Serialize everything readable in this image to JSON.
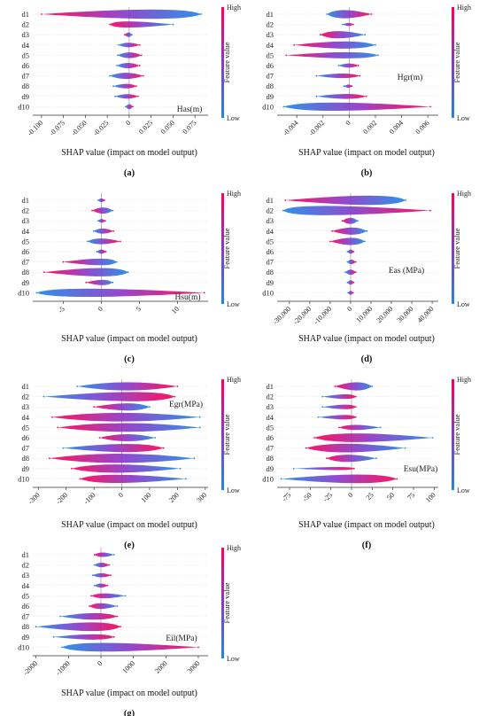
{
  "colorbar": {
    "high_label": "High",
    "low_label": "Low",
    "title": "Feature value",
    "color_low": "#1e88e5",
    "color_mid": "#8a39c8",
    "color_high": "#ff0052"
  },
  "xlabel": "SHAP value (impact on model output)",
  "chart_data": [
    {
      "panel": "(a)",
      "type": "violin",
      "feature_label": "Has(m)",
      "features": [
        "d1",
        "d2",
        "d3",
        "d4",
        "d5",
        "d6",
        "d7",
        "d8",
        "d9",
        "d10"
      ],
      "xlim": [
        -0.11,
        0.09
      ],
      "xticks": [
        -0.1,
        -0.075,
        -0.05,
        -0.025,
        0,
        0.025,
        0.05,
        0.075
      ],
      "xtick_labels": [
        "-0.100",
        "-0.075",
        "-0.050",
        "-0.025",
        "0",
        "0.025",
        "0.050",
        "0.075"
      ],
      "series": [
        {
          "range": [
            -0.1,
            0.082
          ],
          "width": 0.45,
          "peak": 0.06,
          "low_side": "right"
        },
        {
          "range": [
            -0.022,
            0.05
          ],
          "width": 0.3,
          "peak": -0.015,
          "low_side": "right"
        },
        {
          "range": [
            -0.005,
            0.003
          ],
          "width": 0.22,
          "peak": 0,
          "low_side": "right"
        },
        {
          "range": [
            -0.012,
            0.012
          ],
          "width": 0.22,
          "peak": -0.002,
          "low_side": "left"
        },
        {
          "range": [
            -0.013,
            0.014
          ],
          "width": 0.28,
          "peak": 0,
          "low_side": "left"
        },
        {
          "range": [
            -0.014,
            0.012
          ],
          "width": 0.26,
          "peak": -0.002,
          "low_side": "left"
        },
        {
          "range": [
            -0.022,
            0.016
          ],
          "width": 0.3,
          "peak": -0.004,
          "low_side": "left"
        },
        {
          "range": [
            -0.018,
            0.008
          ],
          "width": 0.22,
          "peak": -0.001,
          "low_side": "left"
        },
        {
          "range": [
            -0.016,
            0.01
          ],
          "width": 0.22,
          "peak": -0.001,
          "low_side": "left"
        },
        {
          "range": [
            -0.004,
            0.004
          ],
          "width": 0.24,
          "peak": 0,
          "low_side": "left"
        }
      ]
    },
    {
      "panel": "(b)",
      "type": "violin",
      "feature_label": "Hgr(m)",
      "features": [
        "d1",
        "d2",
        "d3",
        "d4",
        "d5",
        "d6",
        "d7",
        "d8",
        "d9",
        "d10"
      ],
      "xlim": [
        -0.0055,
        0.0068
      ],
      "xticks": [
        -0.004,
        -0.002,
        0,
        0.002,
        0.004,
        0.006
      ],
      "xtick_labels": [
        "-0.004",
        "-0.002",
        "0",
        "0.002",
        "0.004",
        "0.006"
      ],
      "series": [
        {
          "range": [
            -0.0017,
            0.0017
          ],
          "width": 0.4,
          "peak": -0.0008,
          "low_side": "left"
        },
        {
          "range": [
            -0.0005,
            0.0003
          ],
          "width": 0.15,
          "peak": 0,
          "low_side": "left"
        },
        {
          "range": [
            -0.0022,
            0.0012
          ],
          "width": 0.35,
          "peak": -0.0012,
          "low_side": "right"
        },
        {
          "range": [
            -0.0042,
            0.002
          ],
          "width": 0.35,
          "peak": 0.0005,
          "low_side": "right"
        },
        {
          "range": [
            -0.0048,
            0.0022
          ],
          "width": 0.3,
          "peak": 0.001,
          "low_side": "right"
        },
        {
          "range": [
            -0.0008,
            0.0007
          ],
          "width": 0.2,
          "peak": 0,
          "low_side": "left"
        },
        {
          "range": [
            -0.0025,
            0.0008
          ],
          "width": 0.22,
          "peak": -0.0002,
          "low_side": "left"
        },
        {
          "range": [
            -0.0004,
            0.0002
          ],
          "width": 0.16,
          "peak": 0,
          "low_side": "left"
        },
        {
          "range": [
            -0.0025,
            0.0013
          ],
          "width": 0.24,
          "peak": 0.0002,
          "low_side": "left"
        },
        {
          "range": [
            -0.005,
            0.0062
          ],
          "width": 0.4,
          "peak": -0.003,
          "low_side": "left"
        }
      ]
    },
    {
      "panel": "(c)",
      "type": "violin",
      "feature_label": "Hsu(m)",
      "features": [
        "d1",
        "d2",
        "d3",
        "d4",
        "d5",
        "d6",
        "d7",
        "d8",
        "d9",
        "d10"
      ],
      "xlim": [
        -9,
        14
      ],
      "xticks": [
        -5,
        0,
        5,
        10
      ],
      "xtick_labels": [
        "-5",
        "0",
        "5",
        "10"
      ],
      "series": [
        {
          "range": [
            -0.4,
            0.4
          ],
          "width": 0.18,
          "peak": 0,
          "low_side": "left"
        },
        {
          "range": [
            -1.2,
            1.5
          ],
          "width": 0.3,
          "peak": 0.3,
          "low_side": "right"
        },
        {
          "range": [
            -0.4,
            0.5
          ],
          "width": 0.18,
          "peak": 0,
          "low_side": "left"
        },
        {
          "range": [
            -1,
            1.6
          ],
          "width": 0.25,
          "peak": 0,
          "low_side": "left"
        },
        {
          "range": [
            -1.8,
            2.5
          ],
          "width": 0.28,
          "peak": -0.5,
          "low_side": "left"
        },
        {
          "range": [
            -0.6,
            0.6
          ],
          "width": 0.2,
          "peak": 0,
          "low_side": "left"
        },
        {
          "range": [
            -5,
            2
          ],
          "width": 0.32,
          "peak": 1.2,
          "low_side": "right"
        },
        {
          "range": [
            -7.5,
            3.5
          ],
          "width": 0.4,
          "peak": 2,
          "low_side": "right"
        },
        {
          "range": [
            -2,
            1.5
          ],
          "width": 0.26,
          "peak": 0.5,
          "low_side": "right"
        },
        {
          "range": [
            -8.5,
            13.5
          ],
          "width": 0.4,
          "peak": -6,
          "low_side": "left"
        }
      ]
    },
    {
      "panel": "(d)",
      "type": "violin",
      "feature_label": "Eas (MPa)",
      "features": [
        "d1",
        "d2",
        "d3",
        "d4",
        "d5",
        "d6",
        "d7",
        "d8",
        "d9",
        "d10"
      ],
      "xlim": [
        -36000,
        43000
      ],
      "xticks": [
        -30000,
        -20000,
        -10000,
        0,
        10000,
        20000,
        30000,
        40000
      ],
      "xtick_labels": [
        "-30,000",
        "-20,000",
        "-10,000",
        "0",
        "10,000",
        "20,000",
        "30,000",
        "40,000"
      ],
      "series": [
        {
          "range": [
            -32000,
            27000
          ],
          "width": 0.45,
          "peak": 20000,
          "low_side": "right"
        },
        {
          "range": [
            -33000,
            39000
          ],
          "width": 0.45,
          "peak": -28000,
          "low_side": "left"
        },
        {
          "range": [
            -4000,
            3500
          ],
          "width": 0.3,
          "peak": 0,
          "low_side": "right"
        },
        {
          "range": [
            -9000,
            8000
          ],
          "width": 0.35,
          "peak": 2000,
          "low_side": "right"
        },
        {
          "range": [
            -10000,
            7000
          ],
          "width": 0.35,
          "peak": 2000,
          "low_side": "right"
        },
        {
          "range": [
            -1500,
            1500
          ],
          "width": 0.2,
          "peak": 0,
          "low_side": "left"
        },
        {
          "range": [
            -1500,
            2500
          ],
          "width": 0.22,
          "peak": 0,
          "low_side": "left"
        },
        {
          "range": [
            -2500,
            2500
          ],
          "width": 0.25,
          "peak": 0,
          "low_side": "left"
        },
        {
          "range": [
            -1500,
            1500
          ],
          "width": 0.22,
          "peak": 0,
          "low_side": "left"
        },
        {
          "range": [
            -1200,
            1200
          ],
          "width": 0.2,
          "peak": 0,
          "low_side": "left"
        }
      ]
    },
    {
      "panel": "(e)",
      "type": "violin",
      "feature_label": "Egr(MPa)",
      "features": [
        "d1",
        "d2",
        "d3",
        "d4",
        "d5",
        "d6",
        "d7",
        "d8",
        "d9",
        "d10"
      ],
      "xlim": [
        -320,
        310
      ],
      "xticks": [
        -300,
        -200,
        -100,
        0,
        100,
        200,
        300
      ],
      "xtick_labels": [
        "-300",
        "-200",
        "-100",
        "0",
        "100",
        "200",
        "300"
      ],
      "series": [
        {
          "range": [
            -160,
            200
          ],
          "width": 0.4,
          "peak": 20,
          "low_side": "left"
        },
        {
          "range": [
            -280,
            190
          ],
          "width": 0.45,
          "peak": 120,
          "low_side": "left"
        },
        {
          "range": [
            -100,
            100
          ],
          "width": 0.35,
          "peak": 40,
          "low_side": "right"
        },
        {
          "range": [
            -250,
            280
          ],
          "width": 0.42,
          "peak": -30,
          "low_side": "right"
        },
        {
          "range": [
            -230,
            280
          ],
          "width": 0.42,
          "peak": 0,
          "low_side": "right"
        },
        {
          "range": [
            -80,
            120
          ],
          "width": 0.35,
          "peak": 20,
          "low_side": "right"
        },
        {
          "range": [
            -210,
            150
          ],
          "width": 0.4,
          "peak": 60,
          "low_side": "left"
        },
        {
          "range": [
            -260,
            260
          ],
          "width": 0.45,
          "peak": -20,
          "low_side": "right"
        },
        {
          "range": [
            -180,
            210
          ],
          "width": 0.4,
          "peak": -60,
          "low_side": "right"
        },
        {
          "range": [
            -150,
            230
          ],
          "width": 0.4,
          "peak": -80,
          "low_side": "right"
        }
      ]
    },
    {
      "panel": "(f)",
      "type": "violin",
      "feature_label": "Esu(MPa)",
      "features": [
        "d1",
        "d2",
        "d3",
        "d4",
        "d5",
        "d6",
        "d7",
        "d8",
        "d9",
        "d10"
      ],
      "xlim": [
        -90,
        105
      ],
      "xticks": [
        -75,
        -50,
        -25,
        0,
        25,
        50,
        75,
        100
      ],
      "xtick_labels": [
        "-75",
        "-50",
        "-25",
        "0",
        "25",
        "50",
        "75",
        "100"
      ],
      "series": [
        {
          "range": [
            -20,
            25
          ],
          "width": 0.4,
          "peak": 10,
          "low_side": "right"
        },
        {
          "range": [
            -35,
            5
          ],
          "width": 0.22,
          "peak": 0,
          "low_side": "left"
        },
        {
          "range": [
            -35,
            5
          ],
          "width": 0.22,
          "peak": 0,
          "low_side": "left"
        },
        {
          "range": [
            -40,
            5
          ],
          "width": 0.22,
          "peak": 0,
          "low_side": "left"
        },
        {
          "range": [
            -15,
            35
          ],
          "width": 0.25,
          "peak": 0,
          "low_side": "right"
        },
        {
          "range": [
            -45,
            98
          ],
          "width": 0.42,
          "peak": -15,
          "low_side": "right"
        },
        {
          "range": [
            -55,
            65
          ],
          "width": 0.42,
          "peak": -20,
          "low_side": "right"
        },
        {
          "range": [
            -30,
            30
          ],
          "width": 0.35,
          "peak": -10,
          "low_side": "right"
        },
        {
          "range": [
            -70,
            3
          ],
          "width": 0.15,
          "peak": 0,
          "low_side": "left"
        },
        {
          "range": [
            -85,
            55
          ],
          "width": 0.42,
          "peak": 28,
          "low_side": "left"
        }
      ]
    },
    {
      "panel": "(g)",
      "type": "violin",
      "feature_label": "Eil(MPa)",
      "features": [
        "d1",
        "d2",
        "d3",
        "d4",
        "d5",
        "d6",
        "d7",
        "d8",
        "d9",
        "d10"
      ],
      "xlim": [
        -2100,
        3300
      ],
      "xticks": [
        -2000,
        -1000,
        0,
        1000,
        2000,
        3000
      ],
      "xtick_labels": [
        "-2000",
        "-1000",
        "0",
        "1000",
        "2000",
        "3000"
      ],
      "series": [
        {
          "range": [
            -200,
            400
          ],
          "width": 0.22,
          "peak": 0,
          "low_side": "right"
        },
        {
          "range": [
            -200,
            250
          ],
          "width": 0.22,
          "peak": 0,
          "low_side": "left"
        },
        {
          "range": [
            -250,
            300
          ],
          "width": 0.2,
          "peak": 0,
          "low_side": "left"
        },
        {
          "range": [
            -200,
            200
          ],
          "width": 0.2,
          "peak": 0,
          "low_side": "left"
        },
        {
          "range": [
            -300,
            750
          ],
          "width": 0.24,
          "peak": 0,
          "low_side": "right"
        },
        {
          "range": [
            -350,
            500
          ],
          "width": 0.28,
          "peak": -100,
          "low_side": "right"
        },
        {
          "range": [
            -1250,
            500
          ],
          "width": 0.32,
          "peak": 0,
          "low_side": "left"
        },
        {
          "range": [
            -2000,
            600
          ],
          "width": 0.42,
          "peak": 150,
          "low_side": "left"
        },
        {
          "range": [
            -1450,
            400
          ],
          "width": 0.26,
          "peak": 50,
          "low_side": "left"
        },
        {
          "range": [
            -1200,
            3000
          ],
          "width": 0.42,
          "peak": -700,
          "low_side": "left"
        }
      ]
    }
  ]
}
